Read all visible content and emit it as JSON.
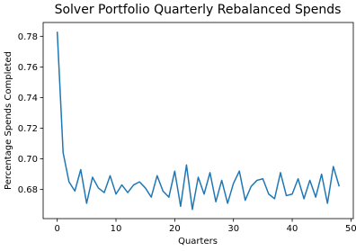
{
  "chart_data": {
    "type": "line",
    "title": "Solver Portfolio Quarterly Rebalanced Spends",
    "x_label": "Quarters",
    "y_label": "Percentage Spends Completed",
    "x": [
      0,
      1,
      2,
      3,
      4,
      5,
      6,
      7,
      8,
      9,
      10,
      11,
      12,
      13,
      14,
      15,
      16,
      17,
      18,
      19,
      20,
      21,
      22,
      23,
      24,
      25,
      26,
      27,
      28,
      29,
      30,
      31,
      32,
      33,
      34,
      35,
      36,
      37,
      38,
      39,
      40,
      41,
      42,
      43,
      44,
      45,
      46,
      47,
      48
    ],
    "values": [
      0.783,
      0.704,
      0.685,
      0.679,
      0.693,
      0.671,
      0.688,
      0.681,
      0.678,
      0.689,
      0.677,
      0.683,
      0.678,
      0.683,
      0.685,
      0.681,
      0.675,
      0.689,
      0.679,
      0.675,
      0.692,
      0.669,
      0.696,
      0.667,
      0.688,
      0.677,
      0.691,
      0.672,
      0.686,
      0.671,
      0.684,
      0.692,
      0.673,
      0.682,
      0.686,
      0.687,
      0.677,
      0.674,
      0.691,
      0.676,
      0.677,
      0.687,
      0.674,
      0.686,
      0.675,
      0.69,
      0.671,
      0.695,
      0.682
    ],
    "color": "#1f77b4",
    "xlim": [
      -2.4,
      50.4
    ],
    "xticks": [
      0,
      10,
      20,
      30,
      40,
      50
    ],
    "ylim": [
      0.661,
      0.789
    ],
    "yticks": [
      0.68,
      {
        "value": 0.7,
        "label": "0.70"
      },
      0.72,
      0.74,
      0.76,
      0.78
    ]
  }
}
